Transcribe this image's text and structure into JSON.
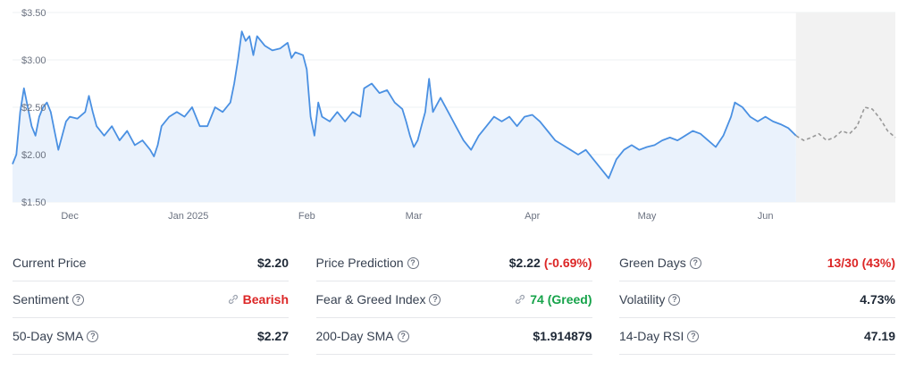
{
  "chart_data": {
    "type": "area",
    "y_ticks": [
      "$3.50",
      "$3.00",
      "$2.50",
      "$2.00",
      "$1.50"
    ],
    "y_tick_values": [
      3.5,
      3.0,
      2.5,
      2.0,
      1.5
    ],
    "ylim": [
      1.5,
      3.5
    ],
    "x_ticks": [
      {
        "label": "Dec",
        "date": "2024-12-01"
      },
      {
        "label": "Jan 2025",
        "date": "2025-01-01"
      },
      {
        "label": "Feb",
        "date": "2025-02-01"
      },
      {
        "label": "Mar",
        "date": "2025-03-01"
      },
      {
        "label": "Apr",
        "date": "2025-04-01"
      },
      {
        "label": "May",
        "date": "2025-05-01"
      },
      {
        "label": "Jun",
        "date": "2025-06-01"
      }
    ],
    "grid": true,
    "series": [
      {
        "kind": "price",
        "color": "#4a90e2",
        "fill": "#eaf2fc",
        "points": [
          [
            "2024-11-16",
            1.9
          ],
          [
            "2024-11-17",
            2.0
          ],
          [
            "2024-11-18",
            2.45
          ],
          [
            "2024-11-19",
            2.7
          ],
          [
            "2024-11-20",
            2.5
          ],
          [
            "2024-11-21",
            2.3
          ],
          [
            "2024-11-22",
            2.2
          ],
          [
            "2024-11-23",
            2.4
          ],
          [
            "2024-11-24",
            2.5
          ],
          [
            "2024-11-25",
            2.55
          ],
          [
            "2024-11-26",
            2.45
          ],
          [
            "2024-11-27",
            2.25
          ],
          [
            "2024-11-28",
            2.05
          ],
          [
            "2024-11-29",
            2.2
          ],
          [
            "2024-11-30",
            2.35
          ],
          [
            "2024-12-01",
            2.4
          ],
          [
            "2024-12-03",
            2.38
          ],
          [
            "2024-12-05",
            2.45
          ],
          [
            "2024-12-06",
            2.62
          ],
          [
            "2024-12-07",
            2.45
          ],
          [
            "2024-12-08",
            2.3
          ],
          [
            "2024-12-10",
            2.2
          ],
          [
            "2024-12-12",
            2.3
          ],
          [
            "2024-12-14",
            2.15
          ],
          [
            "2024-12-16",
            2.25
          ],
          [
            "2024-12-18",
            2.1
          ],
          [
            "2024-12-20",
            2.15
          ],
          [
            "2024-12-22",
            2.05
          ],
          [
            "2024-12-23",
            1.98
          ],
          [
            "2024-12-24",
            2.1
          ],
          [
            "2024-12-25",
            2.3
          ],
          [
            "2024-12-27",
            2.4
          ],
          [
            "2024-12-29",
            2.45
          ],
          [
            "2024-12-31",
            2.4
          ],
          [
            "2025-01-02",
            2.5
          ],
          [
            "2025-01-04",
            2.3
          ],
          [
            "2025-01-06",
            2.3
          ],
          [
            "2025-01-08",
            2.5
          ],
          [
            "2025-01-10",
            2.45
          ],
          [
            "2025-01-12",
            2.55
          ],
          [
            "2025-01-13",
            2.75
          ],
          [
            "2025-01-14",
            3.0
          ],
          [
            "2025-01-15",
            3.3
          ],
          [
            "2025-01-16",
            3.2
          ],
          [
            "2025-01-17",
            3.25
          ],
          [
            "2025-01-18",
            3.05
          ],
          [
            "2025-01-19",
            3.25
          ],
          [
            "2025-01-21",
            3.15
          ],
          [
            "2025-01-23",
            3.1
          ],
          [
            "2025-01-25",
            3.12
          ],
          [
            "2025-01-27",
            3.18
          ],
          [
            "2025-01-28",
            3.02
          ],
          [
            "2025-01-29",
            3.08
          ],
          [
            "2025-01-31",
            3.05
          ],
          [
            "2025-02-01",
            2.9
          ],
          [
            "2025-02-02",
            2.4
          ],
          [
            "2025-02-03",
            2.2
          ],
          [
            "2025-02-04",
            2.55
          ],
          [
            "2025-02-05",
            2.4
          ],
          [
            "2025-02-07",
            2.35
          ],
          [
            "2025-02-09",
            2.45
          ],
          [
            "2025-02-11",
            2.35
          ],
          [
            "2025-02-13",
            2.45
          ],
          [
            "2025-02-15",
            2.4
          ],
          [
            "2025-02-16",
            2.7
          ],
          [
            "2025-02-18",
            2.75
          ],
          [
            "2025-02-20",
            2.65
          ],
          [
            "2025-02-22",
            2.68
          ],
          [
            "2025-02-24",
            2.55
          ],
          [
            "2025-02-26",
            2.48
          ],
          [
            "2025-02-27",
            2.35
          ],
          [
            "2025-02-28",
            2.2
          ],
          [
            "2025-03-01",
            2.08
          ],
          [
            "2025-03-02",
            2.15
          ],
          [
            "2025-03-03",
            2.3
          ],
          [
            "2025-03-04",
            2.45
          ],
          [
            "2025-03-05",
            2.8
          ],
          [
            "2025-03-06",
            2.45
          ],
          [
            "2025-03-08",
            2.6
          ],
          [
            "2025-03-10",
            2.45
          ],
          [
            "2025-03-12",
            2.3
          ],
          [
            "2025-03-14",
            2.15
          ],
          [
            "2025-03-16",
            2.05
          ],
          [
            "2025-03-18",
            2.2
          ],
          [
            "2025-03-20",
            2.3
          ],
          [
            "2025-03-22",
            2.4
          ],
          [
            "2025-03-24",
            2.35
          ],
          [
            "2025-03-26",
            2.4
          ],
          [
            "2025-03-28",
            2.3
          ],
          [
            "2025-03-30",
            2.4
          ],
          [
            "2025-04-01",
            2.42
          ],
          [
            "2025-04-03",
            2.35
          ],
          [
            "2025-04-05",
            2.25
          ],
          [
            "2025-04-07",
            2.15
          ],
          [
            "2025-04-09",
            2.1
          ],
          [
            "2025-04-11",
            2.05
          ],
          [
            "2025-04-13",
            2.0
          ],
          [
            "2025-04-15",
            2.05
          ],
          [
            "2025-04-17",
            1.95
          ],
          [
            "2025-04-19",
            1.85
          ],
          [
            "2025-04-21",
            1.75
          ],
          [
            "2025-04-23",
            1.95
          ],
          [
            "2025-04-25",
            2.05
          ],
          [
            "2025-04-27",
            2.1
          ],
          [
            "2025-04-29",
            2.05
          ],
          [
            "2025-05-01",
            2.08
          ],
          [
            "2025-05-03",
            2.1
          ],
          [
            "2025-05-05",
            2.15
          ],
          [
            "2025-05-07",
            2.18
          ],
          [
            "2025-05-09",
            2.15
          ],
          [
            "2025-05-11",
            2.2
          ],
          [
            "2025-05-13",
            2.25
          ],
          [
            "2025-05-15",
            2.22
          ],
          [
            "2025-05-17",
            2.15
          ],
          [
            "2025-05-19",
            2.08
          ],
          [
            "2025-05-21",
            2.2
          ],
          [
            "2025-05-23",
            2.4
          ],
          [
            "2025-05-24",
            2.55
          ],
          [
            "2025-05-26",
            2.5
          ],
          [
            "2025-05-28",
            2.4
          ],
          [
            "2025-05-30",
            2.35
          ],
          [
            "2025-06-01",
            2.4
          ],
          [
            "2025-06-03",
            2.35
          ],
          [
            "2025-06-05",
            2.32
          ],
          [
            "2025-06-07",
            2.28
          ],
          [
            "2025-06-09",
            2.2
          ]
        ]
      },
      {
        "kind": "forecast",
        "color": "#999999",
        "fill": "#f2f2f2",
        "points": [
          [
            "2025-06-09",
            2.2
          ],
          [
            "2025-06-11",
            2.15
          ],
          [
            "2025-06-13",
            2.18
          ],
          [
            "2025-06-15",
            2.22
          ],
          [
            "2025-06-17",
            2.15
          ],
          [
            "2025-06-19",
            2.18
          ],
          [
            "2025-06-21",
            2.25
          ],
          [
            "2025-06-23",
            2.22
          ],
          [
            "2025-06-25",
            2.3
          ],
          [
            "2025-06-27",
            2.5
          ],
          [
            "2025-06-29",
            2.48
          ],
          [
            "2025-07-01",
            2.38
          ],
          [
            "2025-07-03",
            2.25
          ],
          [
            "2025-07-05",
            2.18
          ]
        ]
      }
    ]
  },
  "stats": {
    "col1": [
      {
        "label": "Current Price",
        "value": "$2.20"
      },
      {
        "label": "Sentiment",
        "value": "Bearish"
      },
      {
        "label": "50-Day SMA",
        "value": "$2.27"
      }
    ],
    "col2": [
      {
        "label": "Price Prediction",
        "value": "$2.22",
        "change": "(-0.69%)"
      },
      {
        "label": "Fear & Greed Index",
        "value": "74 (Greed)"
      },
      {
        "label": "200-Day SMA",
        "value": "$1.914879"
      }
    ],
    "col3": [
      {
        "label": "Green Days",
        "value": "13/30 (43%)"
      },
      {
        "label": "Volatility",
        "value": "4.73%"
      },
      {
        "label": "14-Day RSI",
        "value": "47.19"
      }
    ]
  },
  "icons": {
    "help": "question-circle-icon",
    "link": "link-icon"
  },
  "colors": {
    "negative": "#dc2626",
    "positive": "#16a34a",
    "line": "#4a90e2"
  }
}
